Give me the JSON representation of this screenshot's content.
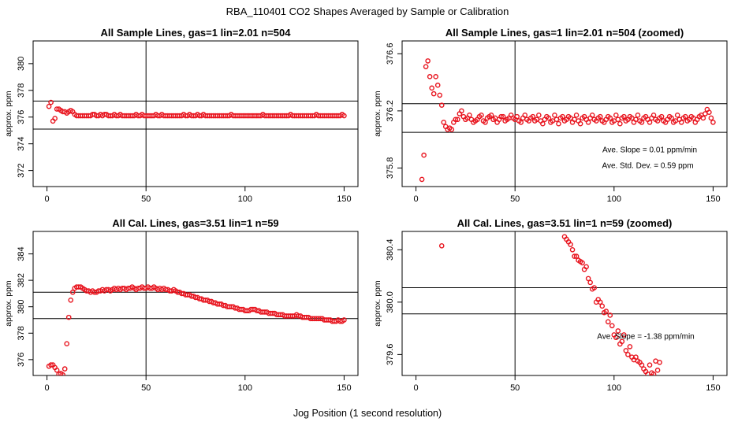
{
  "figure": {
    "title": "RBA_110401  CO2 Shapes Averaged by Sample or Calibration",
    "xlabel": "Jog Position (1 second resolution)"
  },
  "colors": {
    "points": "#e8141e",
    "axes": "#000000"
  },
  "chart_data": [
    {
      "id": "p1",
      "type": "scatter",
      "title": "All Sample Lines, gas=1 lin=2.01 n=504",
      "ylabel": "approx. ppm",
      "xlim": [
        -7,
        157
      ],
      "ylim": [
        370.8,
        381.7
      ],
      "xticks": [
        0,
        50,
        100,
        150
      ],
      "xtick_labels": [
        "0",
        "50",
        "100",
        "150"
      ],
      "yticks": [
        372,
        374,
        376,
        378,
        380
      ],
      "ytick_labels": [
        "372",
        "374",
        "376",
        "378",
        "380"
      ],
      "vline": 50,
      "hlines": [
        377.2,
        375.1
      ],
      "x": [
        1,
        2,
        3,
        4,
        5,
        6,
        7,
        8,
        9,
        10,
        11,
        12,
        13,
        14,
        15,
        16,
        17,
        18,
        19,
        20,
        21,
        22,
        23,
        24,
        25,
        26,
        27,
        28,
        29,
        30,
        31,
        32,
        33,
        34,
        35,
        36,
        37,
        38,
        39,
        40,
        41,
        42,
        43,
        44,
        45,
        46,
        47,
        48,
        49,
        50,
        51,
        52,
        53,
        54,
        55,
        56,
        57,
        58,
        59,
        60,
        61,
        62,
        63,
        64,
        65,
        66,
        67,
        68,
        69,
        70,
        71,
        72,
        73,
        74,
        75,
        76,
        77,
        78,
        79,
        80,
        81,
        82,
        83,
        84,
        85,
        86,
        87,
        88,
        89,
        90,
        91,
        92,
        93,
        94,
        95,
        96,
        97,
        98,
        99,
        100,
        101,
        102,
        103,
        104,
        105,
        106,
        107,
        108,
        109,
        110,
        111,
        112,
        113,
        114,
        115,
        116,
        117,
        118,
        119,
        120,
        121,
        122,
        123,
        124,
        125,
        126,
        127,
        128,
        129,
        130,
        131,
        132,
        133,
        134,
        135,
        136,
        137,
        138,
        139,
        140,
        141,
        142,
        143,
        144,
        145,
        146,
        147,
        148,
        149,
        150
      ],
      "y": [
        376.8,
        377.1,
        375.7,
        375.9,
        376.6,
        376.6,
        376.5,
        376.4,
        376.4,
        376.3,
        376.4,
        376.5,
        376.4,
        376.2,
        376.1,
        376.1,
        376.1,
        376.1,
        376.1,
        376.1,
        376.1,
        376.1,
        376.2,
        376.2,
        376.1,
        376.1,
        376.2,
        376.1,
        376.2,
        376.2,
        376.1,
        376.1,
        376.1,
        376.2,
        376.1,
        376.1,
        376.2,
        376.1,
        376.1,
        376.1,
        376.1,
        376.1,
        376.1,
        376.1,
        376.2,
        376.1,
        376.1,
        376.2,
        376.1,
        376.1,
        376.1,
        376.1,
        376.1,
        376.1,
        376.2,
        376.1,
        376.1,
        376.2,
        376.1,
        376.1,
        376.1,
        376.1,
        376.1,
        376.1,
        376.1,
        376.1,
        376.1,
        376.1,
        376.2,
        376.1,
        376.1,
        376.2,
        376.1,
        376.1,
        376.1,
        376.2,
        376.1,
        376.1,
        376.2,
        376.1,
        376.1,
        376.1,
        376.1,
        376.1,
        376.1,
        376.1,
        376.1,
        376.1,
        376.1,
        376.1,
        376.1,
        376.1,
        376.2,
        376.1,
        376.1,
        376.1,
        376.1,
        376.1,
        376.1,
        376.1,
        376.1,
        376.1,
        376.1,
        376.1,
        376.1,
        376.1,
        376.1,
        376.1,
        376.2,
        376.1,
        376.1,
        376.1,
        376.1,
        376.1,
        376.1,
        376.1,
        376.1,
        376.1,
        376.1,
        376.1,
        376.1,
        376.1,
        376.2,
        376.1,
        376.1,
        376.1,
        376.1,
        376.1,
        376.1,
        376.1,
        376.1,
        376.1,
        376.1,
        376.1,
        376.1,
        376.2,
        376.1,
        376.1,
        376.1,
        376.1,
        376.1,
        376.1,
        376.1,
        376.1,
        376.1,
        376.1,
        376.1,
        376.1,
        376.2,
        376.1
      ],
      "annotations": []
    },
    {
      "id": "p2",
      "type": "scatter",
      "title": "All Sample Lines, gas=1 lin=2.01 n=504 (zoomed)",
      "ylabel": "approx. ppm",
      "xlim": [
        -7,
        157
      ],
      "ylim": [
        375.67,
        376.69
      ],
      "xticks": [
        0,
        50,
        100,
        150
      ],
      "xtick_labels": [
        "0",
        "50",
        "100",
        "150"
      ],
      "yticks": [
        375.8,
        376.2,
        376.6
      ],
      "ytick_labels": [
        "375.8",
        "376.2",
        "376.6"
      ],
      "vline": 50,
      "hlines": [
        376.25,
        376.05
      ],
      "x": [
        3,
        4,
        5,
        6,
        7,
        8,
        9,
        10,
        11,
        12,
        13,
        14,
        15,
        16,
        17,
        18,
        19,
        20,
        21,
        22,
        23,
        24,
        25,
        26,
        27,
        28,
        29,
        30,
        31,
        32,
        33,
        34,
        35,
        36,
        37,
        38,
        39,
        40,
        41,
        42,
        43,
        44,
        45,
        46,
        47,
        48,
        49,
        50,
        51,
        52,
        53,
        54,
        55,
        56,
        57,
        58,
        59,
        60,
        61,
        62,
        63,
        64,
        65,
        66,
        67,
        68,
        69,
        70,
        71,
        72,
        73,
        74,
        75,
        76,
        77,
        78,
        79,
        80,
        81,
        82,
        83,
        84,
        85,
        86,
        87,
        88,
        89,
        90,
        91,
        92,
        93,
        94,
        95,
        96,
        97,
        98,
        99,
        100,
        101,
        102,
        103,
        104,
        105,
        106,
        107,
        108,
        109,
        110,
        111,
        112,
        113,
        114,
        115,
        116,
        117,
        118,
        119,
        120,
        121,
        122,
        123,
        124,
        125,
        126,
        127,
        128,
        129,
        130,
        131,
        132,
        133,
        134,
        135,
        136,
        137,
        138,
        139,
        140,
        141,
        142,
        143,
        144,
        145,
        146,
        147,
        148,
        149,
        150
      ],
      "y": [
        375.72,
        375.89,
        376.51,
        376.55,
        376.44,
        376.36,
        376.32,
        376.44,
        376.38,
        376.31,
        376.24,
        376.12,
        376.09,
        376.07,
        376.08,
        376.07,
        376.12,
        376.14,
        376.14,
        376.18,
        376.2,
        376.16,
        376.14,
        376.15,
        376.17,
        376.14,
        376.12,
        376.13,
        376.14,
        376.16,
        376.17,
        376.13,
        376.12,
        376.15,
        376.16,
        376.17,
        376.14,
        376.15,
        376.12,
        376.14,
        376.16,
        376.16,
        376.13,
        376.14,
        376.15,
        376.17,
        376.15,
        376.14,
        376.16,
        376.13,
        376.12,
        376.15,
        376.17,
        376.14,
        376.13,
        376.15,
        376.16,
        376.13,
        376.14,
        376.17,
        376.13,
        376.11,
        376.14,
        376.16,
        376.15,
        376.12,
        376.13,
        376.17,
        376.14,
        376.11,
        376.15,
        376.16,
        376.13,
        376.14,
        376.16,
        376.15,
        376.12,
        376.14,
        376.17,
        376.13,
        376.11,
        376.15,
        376.16,
        376.14,
        376.12,
        376.15,
        376.17,
        376.14,
        376.13,
        376.15,
        376.16,
        376.13,
        376.12,
        376.14,
        376.16,
        376.15,
        376.12,
        376.13,
        376.17,
        376.14,
        376.11,
        376.15,
        376.16,
        376.13,
        376.14,
        376.16,
        376.15,
        376.12,
        376.14,
        376.17,
        376.13,
        376.12,
        376.15,
        376.16,
        376.14,
        376.12,
        376.15,
        376.17,
        376.14,
        376.13,
        376.15,
        376.16,
        376.13,
        376.12,
        376.14,
        376.16,
        376.15,
        376.12,
        376.13,
        376.17,
        376.14,
        376.12,
        376.15,
        376.16,
        376.13,
        376.14,
        376.16,
        376.15,
        376.12,
        376.14,
        376.16,
        376.17,
        376.15,
        376.18,
        376.21,
        376.19,
        376.15,
        376.12
      ],
      "annotations": [
        {
          "id": "slope",
          "text": "Ave. Slope =  0.01  ppm/min",
          "x": 118,
          "y": 375.91
        },
        {
          "id": "std",
          "text": "Ave. Std. Dev. =  0.59  ppm",
          "x": 117,
          "y": 375.8
        }
      ]
    },
    {
      "id": "p3",
      "type": "scatter",
      "title": "All Cal. Lines, gas=3.51 lin=1 n=59",
      "ylabel": "approx. ppm",
      "xlim": [
        -7,
        157
      ],
      "ylim": [
        374.8,
        385.7
      ],
      "xticks": [
        0,
        50,
        100,
        150
      ],
      "xtick_labels": [
        "0",
        "50",
        "100",
        "150"
      ],
      "yticks": [
        376,
        378,
        380,
        382,
        384
      ],
      "ytick_labels": [
        "376",
        "378",
        "380",
        "382",
        "384"
      ],
      "vline": 50,
      "hlines": [
        381.1,
        379.1
      ],
      "x": [
        1,
        2,
        3,
        4,
        5,
        6,
        7,
        8,
        9,
        10,
        11,
        12,
        13,
        14,
        15,
        16,
        17,
        18,
        19,
        20,
        21,
        22,
        23,
        24,
        25,
        26,
        27,
        28,
        29,
        30,
        31,
        32,
        33,
        34,
        35,
        36,
        37,
        38,
        39,
        40,
        41,
        42,
        43,
        44,
        45,
        46,
        47,
        48,
        49,
        50,
        51,
        52,
        53,
        54,
        55,
        56,
        57,
        58,
        59,
        60,
        61,
        62,
        63,
        64,
        65,
        66,
        67,
        68,
        69,
        70,
        71,
        72,
        73,
        74,
        75,
        76,
        77,
        78,
        79,
        80,
        81,
        82,
        83,
        84,
        85,
        86,
        87,
        88,
        89,
        90,
        91,
        92,
        93,
        94,
        95,
        96,
        97,
        98,
        99,
        100,
        101,
        102,
        103,
        104,
        105,
        106,
        107,
        108,
        109,
        110,
        111,
        112,
        113,
        114,
        115,
        116,
        117,
        118,
        119,
        120,
        121,
        122,
        123,
        124,
        125,
        126,
        127,
        128,
        129,
        130,
        131,
        132,
        133,
        134,
        135,
        136,
        137,
        138,
        139,
        140,
        141,
        142,
        143,
        144,
        145,
        146,
        147,
        148,
        149,
        150
      ],
      "y": [
        375.5,
        375.6,
        375.6,
        375.4,
        375.2,
        374.9,
        374.95,
        374.85,
        375.3,
        377.2,
        379.2,
        380.5,
        381.1,
        381.4,
        381.5,
        381.5,
        381.5,
        381.4,
        381.3,
        381.2,
        381.2,
        381.1,
        381.2,
        381.1,
        381.1,
        381.2,
        381.2,
        381.3,
        381.2,
        381.3,
        381.3,
        381.2,
        381.3,
        381.4,
        381.3,
        381.4,
        381.3,
        381.4,
        381.4,
        381.3,
        381.4,
        381.4,
        381.5,
        381.4,
        381.3,
        381.4,
        381.4,
        381.5,
        381.4,
        381.4,
        381.5,
        381.4,
        381.4,
        381.5,
        381.4,
        381.3,
        381.4,
        381.3,
        381.4,
        381.3,
        381.3,
        381.2,
        381.2,
        381.3,
        381.2,
        381.1,
        381.1,
        381.0,
        381.0,
        380.9,
        380.9,
        380.9,
        380.8,
        380.8,
        380.7,
        380.7,
        380.6,
        380.6,
        380.5,
        380.5,
        380.5,
        380.4,
        380.4,
        380.3,
        380.3,
        380.2,
        380.2,
        380.2,
        380.1,
        380.1,
        380.0,
        380.0,
        380.0,
        380.0,
        379.9,
        379.9,
        379.8,
        379.8,
        379.8,
        379.7,
        379.7,
        379.7,
        379.8,
        379.8,
        379.8,
        379.7,
        379.7,
        379.6,
        379.6,
        379.6,
        379.6,
        379.5,
        379.5,
        379.5,
        379.5,
        379.4,
        379.4,
        379.4,
        379.4,
        379.3,
        379.3,
        379.3,
        379.3,
        379.3,
        379.3,
        379.4,
        379.3,
        379.3,
        379.2,
        379.2,
        379.2,
        379.2,
        379.1,
        379.1,
        379.1,
        379.1,
        379.1,
        379.1,
        379.1,
        379.0,
        379.0,
        379.0,
        379.0,
        378.9,
        378.9,
        378.9,
        379.0,
        378.9,
        378.9,
        379.0
      ],
      "annotations": []
    },
    {
      "id": "p4",
      "type": "scatter",
      "title": "All Cal. Lines, gas=3.51 lin=1 n=59 (zoomed)",
      "ylabel": "approx. ppm",
      "xlim": [
        -7,
        157
      ],
      "ylim": [
        379.44,
        380.54
      ],
      "xticks": [
        0,
        50,
        100,
        150
      ],
      "xtick_labels": [
        "0",
        "50",
        "100",
        "150"
      ],
      "yticks": [
        379.6,
        380.0,
        380.4
      ],
      "ytick_labels": [
        "379.6",
        "380.0",
        "380.4"
      ],
      "vline": 50,
      "hlines": [
        380.11,
        379.91
      ],
      "x": [
        13,
        75,
        76,
        77,
        78,
        79,
        80,
        81,
        82,
        83,
        84,
        85,
        86,
        87,
        88,
        89,
        90,
        91,
        92,
        93,
        94,
        95,
        96,
        97,
        98,
        99,
        100,
        101,
        102,
        103,
        104,
        105,
        106,
        107,
        108,
        109,
        110,
        111,
        112,
        113,
        114,
        115,
        116,
        117,
        118,
        119,
        120,
        121,
        122,
        123
      ],
      "y": [
        380.43,
        380.5,
        380.48,
        380.46,
        380.44,
        380.4,
        380.35,
        380.35,
        380.32,
        380.31,
        380.3,
        380.25,
        380.27,
        380.18,
        380.15,
        380.1,
        380.11,
        380.0,
        380.02,
        380.0,
        379.97,
        379.92,
        379.93,
        379.85,
        379.9,
        379.82,
        379.75,
        379.73,
        379.78,
        379.68,
        379.7,
        379.75,
        379.63,
        379.6,
        379.66,
        379.58,
        379.56,
        379.58,
        379.55,
        379.54,
        379.52,
        379.49,
        379.47,
        379.45,
        379.52,
        379.46,
        379.45,
        379.55,
        379.48,
        379.54
      ],
      "annotations": [
        {
          "id": "slope",
          "text": "Ave. Slope =  -1.38  ppm/min",
          "x": 116,
          "y": 379.72
        }
      ]
    }
  ]
}
